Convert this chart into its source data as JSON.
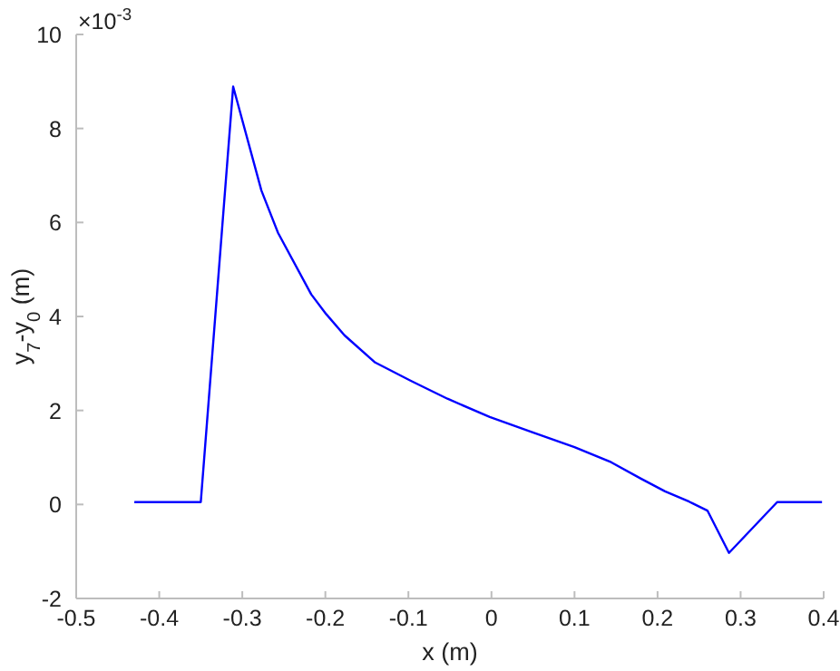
{
  "chart_data": {
    "type": "line",
    "xlabel": "x (m)",
    "ylabel": "y$_{7}$-y$_{0}$ (m)",
    "annotations": [
      "×10$^{-3}$"
    ],
    "xlim": [
      -0.5,
      0.4
    ],
    "xticks": [
      -0.5,
      -0.4,
      -0.3,
      -0.2,
      -0.1,
      0,
      0.1,
      0.2,
      0.3,
      0.4
    ],
    "ylim": [
      -2,
      10
    ],
    "yticks": [
      -2,
      0,
      2,
      4,
      6,
      8,
      10
    ],
    "grid": false,
    "series": [
      {
        "color": "#0000ff",
        "x": [
          -0.43,
          -0.35,
          -0.311,
          -0.277,
          -0.257,
          -0.217,
          -0.199,
          -0.177,
          -0.14,
          -0.097,
          -0.053,
          -0.002,
          0.049,
          0.1,
          0.144,
          0.18,
          0.209,
          0.238,
          0.26,
          0.286,
          0.344,
          0.398
        ],
        "values": [
          0.05,
          0.05,
          8.89,
          6.68,
          5.78,
          4.47,
          4.05,
          3.6,
          3.02,
          2.63,
          2.25,
          1.86,
          1.54,
          1.22,
          0.9,
          0.55,
          0.28,
          0.06,
          -0.13,
          -1.03,
          0.05,
          0.05
        ]
      }
    ]
  }
}
